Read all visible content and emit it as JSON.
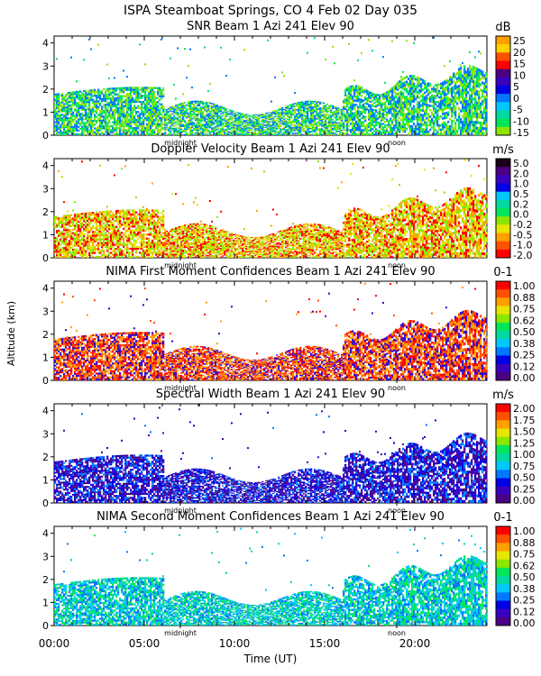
{
  "figure": {
    "title": "ISPA Steamboat Springs, CO    4 Feb 02 Day 035",
    "xlabel": "Time (UT)",
    "ylabel": "Altitude (km)",
    "x_ticks": [
      "00:00",
      "05:00",
      "10:00",
      "15:00",
      "20:00"
    ],
    "markers": [
      "midnight",
      "noon"
    ]
  },
  "colors": {
    "palette": [
      "#4b0082",
      "#3a00c0",
      "#0000e6",
      "#0078ff",
      "#00c8ff",
      "#00d8a0",
      "#00e65a",
      "#8ce600",
      "#e6e600",
      "#ffa000",
      "#ff5000",
      "#ff0000"
    ]
  },
  "chart_data": [
    {
      "type": "heatmap",
      "title": "SNR Beam 1 Azi 241 Elev 90",
      "unit": "dB",
      "xlim": [
        0,
        24
      ],
      "ylim": [
        0,
        4.3
      ],
      "y_ticks": [
        0,
        1,
        2,
        3,
        4
      ],
      "colorbar_ticks": [
        "25",
        "20",
        "15",
        "10",
        "5",
        "0",
        "-5",
        "-10",
        "-15"
      ],
      "colorbar_colors": [
        "#ffa000",
        "#ffd200",
        "#ff5000",
        "#ff0000",
        "#4b0082",
        "#3a00c0",
        "#0000e6",
        "#0078ff",
        "#00c8ff",
        "#00d8a0",
        "#00e65a",
        "#8ce600"
      ],
      "dominant_colors": [
        "#8ce600",
        "#00e65a",
        "#0078ff"
      ]
    },
    {
      "type": "heatmap",
      "title": "Doppler Velocity Beam 1 Azi 241 Elev 90",
      "unit": "m/s",
      "xlim": [
        0,
        24
      ],
      "ylim": [
        0,
        4.3
      ],
      "y_ticks": [
        0,
        1,
        2,
        3,
        4
      ],
      "colorbar_ticks": [
        "5.0",
        "2.0",
        "1.0",
        "0.5",
        "0.2",
        "0.0",
        "-0.2",
        "-0.5",
        "-1.0",
        "-2.0"
      ],
      "colorbar_colors": [
        "#1a001a",
        "#4b0082",
        "#3a00c0",
        "#0000e6",
        "#00c8ff",
        "#00d8a0",
        "#00e65a",
        "#8ce600",
        "#e6e600",
        "#ffa000",
        "#ff5000",
        "#ff0000"
      ],
      "dominant_colors": [
        "#e6e600",
        "#ffa000",
        "#8ce600",
        "#ff0000"
      ]
    },
    {
      "type": "heatmap",
      "title": "NIMA First Moment Confidences Beam 1 Azi 241 Elev 90",
      "unit": "0-1",
      "xlim": [
        0,
        24
      ],
      "ylim": [
        0,
        4.3
      ],
      "y_ticks": [
        0,
        1,
        2,
        3,
        4
      ],
      "colorbar_ticks": [
        "1.00",
        "0.88",
        "0.75",
        "0.62",
        "0.50",
        "0.38",
        "0.25",
        "0.12",
        "0.00"
      ],
      "colorbar_colors": [
        "#ff0000",
        "#ff5000",
        "#ffa000",
        "#e6e600",
        "#8ce600",
        "#00e65a",
        "#00d8a0",
        "#00c8ff",
        "#0078ff",
        "#0000e6",
        "#3a00c0",
        "#4b0082"
      ],
      "dominant_colors": [
        "#ff0000",
        "#ff5000",
        "#ffa000",
        "#3a00c0"
      ]
    },
    {
      "type": "heatmap",
      "title": "Spectral Width Beam 1 Azi 241 Elev 90",
      "unit": "m/s",
      "xlim": [
        0,
        24
      ],
      "ylim": [
        0,
        4.3
      ],
      "y_ticks": [
        0,
        1,
        2,
        3,
        4
      ],
      "colorbar_ticks": [
        "2.00",
        "1.75",
        "1.50",
        "1.25",
        "1.00",
        "0.75",
        "0.50",
        "0.25",
        "0.00"
      ],
      "colorbar_colors": [
        "#ff0000",
        "#ff5000",
        "#ffa000",
        "#e6e600",
        "#8ce600",
        "#00e65a",
        "#00d8a0",
        "#00c8ff",
        "#0078ff",
        "#0000e6",
        "#3a00c0",
        "#4b0082"
      ],
      "dominant_colors": [
        "#3a00c0",
        "#0000e6",
        "#4b0082",
        "#0078ff"
      ]
    },
    {
      "type": "heatmap",
      "title": "NIMA Second Moment Confidences Beam 1 Azi 241 Elev 90",
      "unit": "0-1",
      "xlim": [
        0,
        24
      ],
      "ylim": [
        0,
        4.3
      ],
      "y_ticks": [
        0,
        1,
        2,
        3,
        4
      ],
      "colorbar_ticks": [
        "1.00",
        "0.88",
        "0.75",
        "0.62",
        "0.50",
        "0.38",
        "0.25",
        "0.12",
        "0.00"
      ],
      "colorbar_colors": [
        "#ff0000",
        "#ff5000",
        "#ffa000",
        "#e6e600",
        "#8ce600",
        "#00e65a",
        "#00d8a0",
        "#00c8ff",
        "#0078ff",
        "#0000e6",
        "#3a00c0",
        "#4b0082"
      ],
      "dominant_colors": [
        "#00e65a",
        "#00d8a0",
        "#00c8ff",
        "#0078ff"
      ]
    }
  ]
}
